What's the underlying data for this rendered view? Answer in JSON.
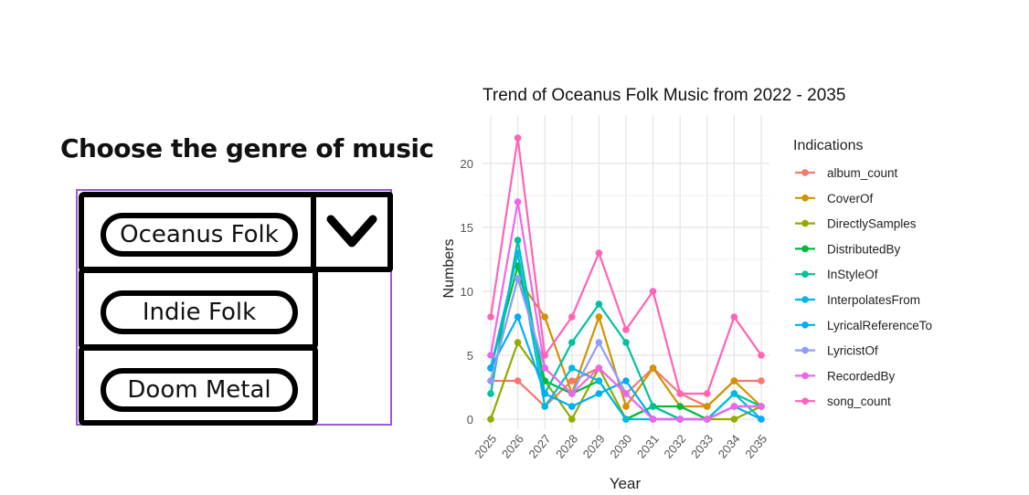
{
  "genre_selector": {
    "title": "Choose the genre of music",
    "options": [
      "Oceanus Folk",
      "Indie Folk",
      "Doom Metal"
    ],
    "toggle_icon": "chevron-down-icon"
  },
  "chart_data": {
    "type": "line",
    "title": "Trend of Oceanus Folk Music from 2022 - 2035",
    "xlabel": "Year",
    "ylabel": "Numbers",
    "x": [
      2025,
      2026,
      2027,
      2028,
      2029,
      2030,
      2031,
      2032,
      2033,
      2034,
      2035
    ],
    "ylim": [
      0,
      23
    ],
    "yticks": [
      0,
      5,
      10,
      15,
      20
    ],
    "legend_title": "Indications",
    "legend_position": "right",
    "grid": true,
    "series": [
      {
        "name": "album_count",
        "color": "#F8766D",
        "values": [
          3,
          3,
          1,
          3,
          4,
          2,
          4,
          2,
          1,
          3,
          3
        ]
      },
      {
        "name": "CoverOf",
        "color": "#D39200",
        "values": [
          3,
          11,
          8,
          2,
          8,
          1,
          4,
          1,
          1,
          3,
          1
        ]
      },
      {
        "name": "DirectlySamples",
        "color": "#93AA00",
        "values": [
          0,
          6,
          3,
          0,
          4,
          0,
          1,
          0,
          0,
          0,
          1
        ]
      },
      {
        "name": "DistributedBy",
        "color": "#00BA38",
        "values": [
          4,
          12,
          3,
          2,
          3,
          0,
          1,
          1,
          0,
          1,
          1
        ]
      },
      {
        "name": "InStyleOf",
        "color": "#00C19F",
        "values": [
          2,
          14,
          2,
          6,
          9,
          6,
          1,
          0,
          0,
          2,
          1
        ]
      },
      {
        "name": "InterpolatesFrom",
        "color": "#00B9E3",
        "values": [
          4,
          13,
          1,
          4,
          3,
          0,
          0,
          0,
          0,
          2,
          0
        ]
      },
      {
        "name": "LyricalReferenceTo",
        "color": "#00ADFA",
        "values": [
          4,
          8,
          2,
          1,
          2,
          3,
          0,
          0,
          0,
          1,
          0
        ]
      },
      {
        "name": "LyricistOf",
        "color": "#8F9CFF",
        "values": [
          3,
          11,
          4,
          2,
          6,
          2,
          0,
          0,
          0,
          1,
          1
        ]
      },
      {
        "name": "RecordedBy",
        "color": "#F066EA",
        "values": [
          5,
          17,
          4,
          2,
          4,
          2,
          0,
          0,
          0,
          1,
          1
        ]
      },
      {
        "name": "song_count",
        "color": "#FF63B6",
        "values": [
          8,
          22,
          5,
          8,
          13,
          7,
          10,
          2,
          2,
          8,
          5
        ]
      }
    ]
  }
}
